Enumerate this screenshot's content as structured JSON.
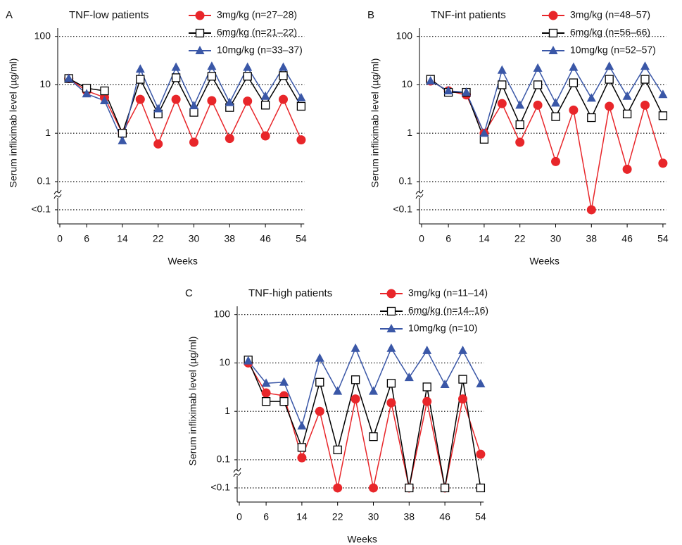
{
  "chart_data": [
    {
      "type": "line",
      "panel_label": "A",
      "title": "TNF-low patients",
      "ylabel": "Serum infliximab level (µg/ml)",
      "xlabel": "Weeks",
      "x": [
        2,
        6,
        10,
        14,
        18,
        22,
        26,
        30,
        34,
        38,
        42,
        46,
        50,
        54
      ],
      "xlim": [
        0,
        55
      ],
      "xticks": [
        0,
        6,
        14,
        22,
        30,
        38,
        46,
        54
      ],
      "ylim": [
        0.02,
        200
      ],
      "log_y": true,
      "grid": true,
      "yticks": [
        {
          "value": 0.0262,
          "label": "<0.1"
        },
        0.1,
        1,
        10,
        100
      ],
      "series": [
        {
          "name": "3mg/kg (n=27–28)",
          "color": "#e8262a",
          "marker": "circle",
          "values": [
            13.5,
            7.5,
            5.5,
            1.0,
            5.0,
            0.6,
            5.0,
            0.65,
            4.7,
            0.78,
            4.6,
            0.88,
            5.0,
            0.73
          ]
        },
        {
          "name": "6mg/kg (n=21–22)",
          "color": "#000000",
          "marker": "square",
          "values": [
            13.5,
            8.5,
            7.5,
            1.0,
            13,
            2.5,
            14,
            2.7,
            15,
            3.4,
            15,
            3.8,
            15.5,
            3.6
          ]
        },
        {
          "name": "10mg/kg (n=33–37)",
          "color": "#3a57a7",
          "marker": "triangle",
          "values": [
            13.5,
            6.5,
            4.7,
            0.7,
            21,
            3.2,
            23,
            3.7,
            24,
            4.3,
            23,
            5.8,
            23,
            5.4
          ]
        }
      ]
    },
    {
      "type": "line",
      "panel_label": "B",
      "title": "TNF-int patients",
      "ylabel": "Serum infliximab level (µg/ml)",
      "xlabel": "Weeks",
      "x": [
        2,
        6,
        10,
        14,
        18,
        22,
        26,
        30,
        34,
        38,
        42,
        46,
        50,
        54
      ],
      "xlim": [
        0,
        55
      ],
      "xticks": [
        0,
        6,
        14,
        22,
        30,
        38,
        46,
        54
      ],
      "ylim": [
        0.02,
        200
      ],
      "log_y": true,
      "grid": true,
      "yticks": [
        {
          "value": 0.0262,
          "label": "<0.1"
        },
        0.1,
        1,
        10,
        100
      ],
      "series": [
        {
          "name": "3mg/kg (n=48–57)",
          "color": "#e8262a",
          "marker": "circle",
          "values": [
            12,
            7.5,
            6.2,
            1.0,
            4.1,
            0.65,
            3.8,
            0.26,
            3.0,
            0.0262,
            3.6,
            0.18,
            3.8,
            0.24
          ]
        },
        {
          "name": "6mg/kg (n=56–66)",
          "color": "#000000",
          "marker": "square",
          "values": [
            13,
            7,
            7,
            0.75,
            10,
            1.5,
            10,
            2.2,
            11,
            2.1,
            13,
            2.5,
            13,
            2.3
          ]
        },
        {
          "name": "10mg/kg (n=52–57)",
          "color": "#3a57a7",
          "marker": "triangle",
          "values": [
            12,
            7.5,
            7,
            1.0,
            20,
            3.8,
            22,
            4.2,
            23,
            5.3,
            24,
            5.8,
            24,
            6.3
          ]
        }
      ]
    },
    {
      "type": "line",
      "panel_label": "C",
      "title": "TNF-high patients",
      "ylabel": "Serum infliximab level (µg/ml)",
      "xlabel": "Weeks",
      "x": [
        2,
        6,
        10,
        14,
        18,
        22,
        26,
        30,
        34,
        38,
        42,
        46,
        50,
        54
      ],
      "xlim": [
        0,
        55
      ],
      "xticks": [
        0,
        6,
        14,
        22,
        30,
        38,
        46,
        54
      ],
      "ylim": [
        0.02,
        200
      ],
      "log_y": true,
      "grid": true,
      "yticks": [
        {
          "value": 0.0262,
          "label": "<0.1"
        },
        0.1,
        1,
        10,
        100
      ],
      "series": [
        {
          "name": "3mg/kg (n=11–14)",
          "color": "#e8262a",
          "marker": "circle",
          "values": [
            10,
            2.4,
            2.1,
            0.11,
            1.0,
            0.0262,
            1.8,
            0.0262,
            1.5,
            0.0262,
            1.6,
            0.0262,
            1.8,
            0.13
          ]
        },
        {
          "name": "6mg/kg (n=14–16)",
          "color": "#000000",
          "marker": "square",
          "values": [
            11.5,
            1.6,
            1.6,
            0.18,
            4.0,
            0.16,
            4.5,
            0.3,
            3.8,
            0.0262,
            3.2,
            0.0262,
            4.6,
            0.0262
          ]
        },
        {
          "name": "10mg/kg (n=10)",
          "color": "#3a57a7",
          "marker": "triangle",
          "values": [
            11,
            3.8,
            4.0,
            0.5,
            12.5,
            2.6,
            20,
            2.6,
            20,
            5.0,
            18,
            3.6,
            18,
            3.7
          ]
        }
      ]
    }
  ]
}
